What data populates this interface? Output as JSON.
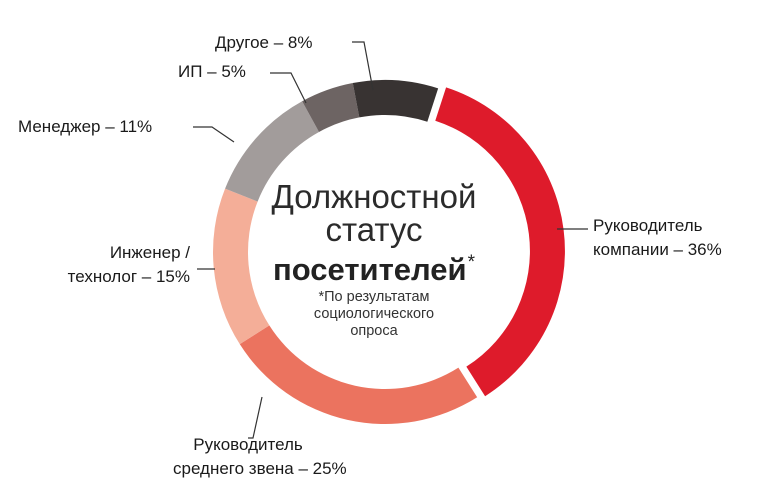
{
  "colors": {
    "background": "#ffffff",
    "leader_line": "#333333"
  },
  "center": {
    "title_line1": "Должностной",
    "title_line2": "статус",
    "title_line3": "посетителей",
    "title_mark": "*",
    "footnote_line1": "*По результатам",
    "footnote_line2": "социологического",
    "footnote_line3": "опроса"
  },
  "chart_data": {
    "type": "pie",
    "variant": "donut",
    "unit": "%",
    "slices": [
      {
        "value": 36,
        "color": "#de1b2b",
        "label_lines": [
          "Руководитель",
          "компании – 36%"
        ]
      },
      {
        "value": 25,
        "color": "#eb735f",
        "label_lines": [
          "Руководитель",
          "среднего звена – 25%"
        ]
      },
      {
        "value": 15,
        "color": "#f4ae98",
        "label_lines": [
          "Инженер /",
          "технолог – 15%"
        ]
      },
      {
        "value": 11,
        "color": "#a29c9b",
        "label_lines": [
          "Менеджер – 11%"
        ]
      },
      {
        "value": 5,
        "color": "#6d6463",
        "label_lines": [
          "ИП – 5%"
        ]
      },
      {
        "value": 8,
        "color": "#383332",
        "label_lines": [
          "Другое – 8%"
        ]
      }
    ]
  }
}
